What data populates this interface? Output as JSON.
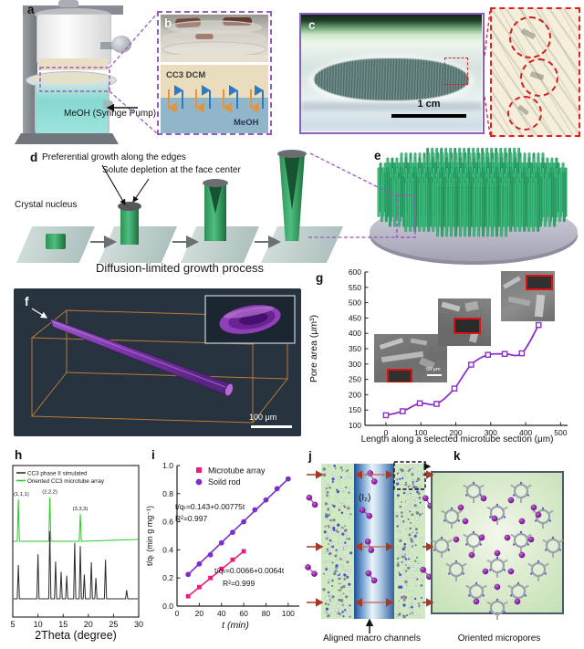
{
  "panels": {
    "a": {
      "label": "a",
      "pump_label": "MeOH (Syringe Pump)"
    },
    "b": {
      "label": "b",
      "layer_top": "CC3 DCM",
      "layer_bottom": "MeOH"
    },
    "c": {
      "label": "c",
      "scale_bar": "1 cm"
    },
    "d": {
      "label": "d",
      "callout_edges": "Preferential growth along the edges",
      "callout_face": "Solute depletion at the face center",
      "nucleus": "Crystal nucleus",
      "caption": "Diffusion-limited growth process"
    },
    "e": {
      "label": "e"
    },
    "f": {
      "label": "f",
      "scale_bar": "100 μm"
    },
    "g": {
      "label": "g",
      "inset_scale_bar": "50 μm"
    },
    "h": {
      "label": "h"
    },
    "i": {
      "label": "i"
    },
    "j": {
      "label": "j",
      "iodine": "(I₂)",
      "caption": "Aligned macro channels"
    },
    "k": {
      "label": "k",
      "caption": "Oriented micropores"
    }
  },
  "chart_data": [
    {
      "id": "g",
      "type": "line",
      "title": "",
      "xlabel": "Length along a selected microtube section (μm)",
      "ylabel": "Pore area (μm³)",
      "xlim": [
        -60,
        520
      ],
      "ylim": [
        100,
        600
      ],
      "xticks": [
        0,
        100,
        200,
        300,
        400,
        500
      ],
      "yticks": [
        100,
        150,
        200,
        250,
        300,
        350,
        400,
        450,
        500,
        550,
        600
      ],
      "marker": "open-square",
      "color": "#8B2FC9",
      "x": [
        0,
        48,
        97,
        145,
        196,
        244,
        292,
        340,
        389,
        437
      ],
      "y": [
        133,
        146,
        172,
        170,
        220,
        298,
        330,
        333,
        335,
        427
      ]
    },
    {
      "id": "h",
      "type": "line",
      "xlabel": "2Theta (degree)",
      "xlim": [
        5,
        30
      ],
      "xticks": [
        5,
        10,
        15,
        20,
        25,
        30
      ],
      "legend": [
        {
          "label": "CC3 phase II simulated",
          "color": "#2b2b2b"
        },
        {
          "label": "Oriented CC3 microtube array",
          "color": "#25CC25"
        }
      ],
      "series": [
        {
          "name": "CC3 phase II simulated",
          "color": "#2b2b2b",
          "peaks": [
            [
              6.1,
              0.5
            ],
            [
              10.0,
              0.66
            ],
            [
              12.35,
              1.0
            ],
            [
              13.5,
              0.55
            ],
            [
              14.6,
              0.4
            ],
            [
              15.7,
              0.34
            ],
            [
              17.3,
              0.83
            ],
            [
              18.4,
              0.78
            ],
            [
              19.2,
              0.36
            ],
            [
              20.6,
              0.54
            ],
            [
              21.5,
              0.31
            ],
            [
              23.4,
              0.58
            ],
            [
              27.6,
              0.13
            ]
          ]
        },
        {
          "name": "Oriented CC3 microtube array",
          "color": "#25CC25",
          "peaks": [
            [
              6.1,
              1.0
            ],
            [
              12.35,
              1.05
            ],
            [
              18.4,
              0.65
            ]
          ],
          "peak_labels": [
            {
              "text": "(1,1,1)",
              "x": 6.1
            },
            {
              "text": "(2,2,2)",
              "x": 12.35
            },
            {
              "text": "(3,3,3)",
              "x": 18.4
            }
          ]
        }
      ]
    },
    {
      "id": "i",
      "type": "scatter",
      "xlabel": "t (min)",
      "ylabel": "t/qₜ (min g mg⁻¹)",
      "xlim": [
        0,
        110
      ],
      "ylim": [
        0.0,
        1.0
      ],
      "xticks": [
        0,
        20,
        40,
        60,
        80,
        100
      ],
      "yticks": [
        "0.0",
        "0.2",
        "0.4",
        "0.6",
        "0.8",
        "1.0"
      ],
      "series": [
        {
          "name": "Microtube array",
          "marker": "square",
          "color": "#EC1E79",
          "x": [
            10,
            20,
            30,
            40,
            50,
            60
          ],
          "y": [
            0.07,
            0.135,
            0.2,
            0.265,
            0.33,
            0.39
          ]
        },
        {
          "name": "Soild rod",
          "marker": "circle",
          "color": "#7C2FC8",
          "x": [
            10,
            20,
            30,
            40,
            50,
            60,
            70,
            80,
            90,
            100
          ],
          "y": [
            0.225,
            0.3,
            0.365,
            0.45,
            0.525,
            0.6,
            0.685,
            0.755,
            0.835,
            0.905
          ]
        }
      ],
      "annotations": [
        {
          "line1": "t/qₜ=0.143+0.00775t",
          "line2": "R²=0.997"
        },
        {
          "line1": "t/qₜ=0.0066+0.0064t",
          "line2": "R²=0.999"
        }
      ]
    }
  ]
}
